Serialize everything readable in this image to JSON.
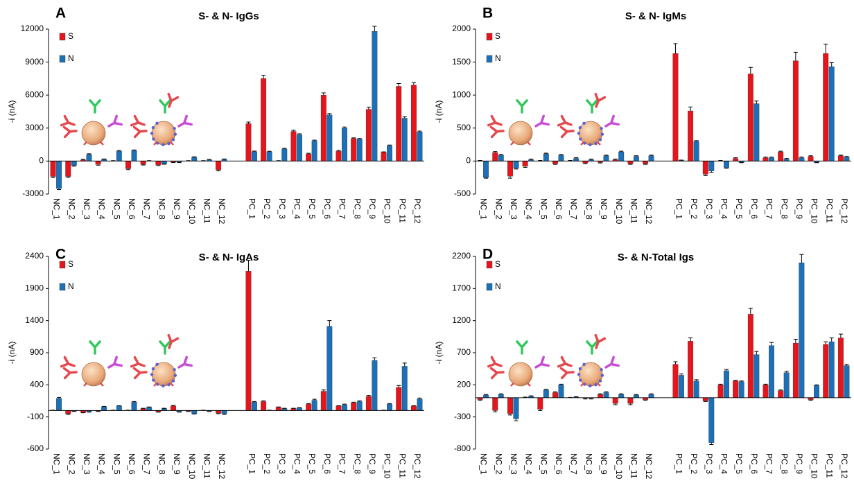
{
  "chart_data": [
    {
      "type": "bar",
      "label": "A",
      "title": "S- & N- IgGs",
      "ylabel": "-i (nA)",
      "categories": [
        "NC_1",
        "NC_2",
        "NC_3",
        "NC_4",
        "NC_5",
        "NC_6",
        "NC_7",
        "NC_8",
        "NC_9",
        "NC_10",
        "NC_11",
        "NC_12",
        null,
        "PC_1",
        "PC_2",
        "PC_3",
        "PC_4",
        "PC_5",
        "PC_6",
        "PC_7",
        "PC_8",
        "PC_9",
        "PC_10",
        "PC_11",
        "PC_12"
      ],
      "series": [
        {
          "name": "S",
          "color": "#e8141c",
          "values": [
            -1400,
            -1400,
            100,
            -300,
            0,
            -700,
            -300,
            -350,
            -100,
            0,
            0,
            -800,
            null,
            3400,
            7500,
            0,
            2700,
            650,
            6000,
            900,
            2050,
            4700,
            800,
            6800,
            6900
          ],
          "errors": [
            100,
            80,
            60,
            80,
            40,
            80,
            60,
            60,
            40,
            40,
            40,
            100,
            null,
            150,
            300,
            40,
            100,
            60,
            200,
            60,
            60,
            200,
            40,
            250,
            250
          ]
        },
        {
          "name": "N",
          "color": "#1b70b8",
          "values": [
            -2500,
            -400,
            600,
            150,
            900,
            950,
            0,
            -250,
            -100,
            350,
            100,
            150,
            null,
            850,
            850,
            1100,
            2400,
            1850,
            4200,
            3000,
            2000,
            11800,
            1400,
            3900,
            2650
          ],
          "errors": [
            100,
            60,
            60,
            40,
            60,
            60,
            40,
            40,
            40,
            40,
            40,
            40,
            null,
            60,
            40,
            60,
            80,
            60,
            120,
            100,
            60,
            450,
            60,
            120,
            80
          ]
        }
      ],
      "ylim": [
        -3000,
        12000
      ],
      "yticks": [
        -3000,
        0,
        3000,
        6000,
        9000,
        12000
      ]
    },
    {
      "type": "bar",
      "label": "B",
      "title": "S- & N- IgMs",
      "ylabel": "-i (nA)",
      "categories": [
        "NC_1",
        "NC_2",
        "NC_3",
        "NC_4",
        "NC_5",
        "NC_6",
        "NC_7",
        "NC_8",
        "NC_9",
        "NC_10",
        "NC_11",
        "NC_12",
        null,
        "PC_1",
        "PC_2",
        "PC_3",
        "PC_4",
        "PC_5",
        "PC_6",
        "PC_7",
        "PC_8",
        "PC_9",
        "PC_10",
        "PC_11",
        "PC_12"
      ],
      "series": [
        {
          "name": "S",
          "color": "#e8141c",
          "values": [
            0,
            130,
            -230,
            -80,
            0,
            -40,
            0,
            -30,
            -20,
            20,
            -40,
            -40,
            null,
            1630,
            760,
            -200,
            0,
            40,
            1320,
            50,
            140,
            1520,
            70,
            1630,
            80
          ],
          "errors": [
            10,
            15,
            30,
            15,
            10,
            10,
            10,
            10,
            10,
            10,
            10,
            10,
            null,
            150,
            60,
            20,
            10,
            10,
            100,
            10,
            10,
            130,
            10,
            140,
            10
          ]
        },
        {
          "name": "N",
          "color": "#1b70b8",
          "values": [
            -250,
            90,
            -110,
            20,
            110,
            90,
            40,
            20,
            80,
            140,
            70,
            80,
            null,
            10,
            300,
            -150,
            -100,
            -20,
            870,
            50,
            30,
            50,
            -20,
            1430,
            60
          ],
          "errors": [
            10,
            10,
            10,
            10,
            10,
            10,
            10,
            10,
            10,
            10,
            10,
            10,
            null,
            5,
            10,
            20,
            10,
            5,
            40,
            10,
            10,
            10,
            5,
            60,
            10
          ]
        }
      ],
      "ylim": [
        -500,
        2000
      ],
      "yticks": [
        -500,
        0,
        500,
        1000,
        1500,
        2000
      ]
    },
    {
      "type": "bar",
      "label": "C",
      "title": "S- & N- IgAs",
      "ylabel": "-i (nA)",
      "categories": [
        "NC_1",
        "NC_2",
        "NC_3",
        "NC_4",
        "NC_5",
        "NC_6",
        "NC_7",
        "NC_8",
        "NC_9",
        "NC_10",
        "NC_11",
        "NC_12",
        null,
        "PC_1",
        "PC_2",
        "PC_3",
        "PC_4",
        "PC_5",
        "PC_6",
        "PC_7",
        "PC_8",
        "PC_9",
        "PC_10",
        "PC_11",
        "PC_12"
      ],
      "series": [
        {
          "name": "S",
          "color": "#e8141c",
          "values": [
            0,
            -50,
            -30,
            -10,
            0,
            0,
            30,
            -20,
            70,
            -10,
            0,
            -40,
            null,
            2170,
            140,
            50,
            30,
            100,
            300,
            70,
            120,
            220,
            0,
            360,
            70
          ],
          "errors": [
            5,
            10,
            5,
            5,
            5,
            5,
            5,
            5,
            10,
            5,
            5,
            10,
            null,
            170,
            10,
            5,
            5,
            10,
            20,
            5,
            10,
            15,
            5,
            30,
            5
          ]
        },
        {
          "name": "N",
          "color": "#1b70b8",
          "values": [
            190,
            -10,
            -20,
            60,
            70,
            130,
            50,
            30,
            -20,
            -50,
            -10,
            -50,
            null,
            130,
            0,
            30,
            40,
            160,
            1310,
            90,
            140,
            780,
            100,
            690,
            180
          ],
          "errors": [
            15,
            5,
            5,
            5,
            5,
            10,
            5,
            5,
            5,
            5,
            5,
            10,
            null,
            10,
            5,
            5,
            5,
            15,
            90,
            10,
            10,
            40,
            10,
            50,
            15
          ]
        }
      ],
      "ylim": [
        -600,
        2400
      ],
      "yticks": [
        -600,
        -100,
        400,
        900,
        1400,
        1900,
        2400
      ]
    },
    {
      "type": "bar",
      "label": "D",
      "title": "S- & N-Total Igs",
      "ylabel": "-i (nA)",
      "categories": [
        "NC_1",
        "NC_2",
        "NC_3",
        "NC_4",
        "NC_5",
        "NC_6",
        "NC_7",
        "NC_8",
        "NC_9",
        "NC_10",
        "NC_11",
        "NC_12",
        null,
        "PC_1",
        "PC_2",
        "PC_3",
        "PC_4",
        "PC_5",
        "PC_6",
        "PC_7",
        "PC_8",
        "PC_9",
        "PC_10",
        "PC_11",
        "PC_12"
      ],
      "series": [
        {
          "name": "S",
          "color": "#e8141c",
          "values": [
            -30,
            -200,
            -250,
            0,
            -180,
            80,
            0,
            -10,
            50,
            -90,
            -90,
            -30,
            null,
            520,
            880,
            -50,
            200,
            260,
            1300,
            200,
            110,
            850,
            -30,
            830,
            930
          ],
          "errors": [
            10,
            20,
            20,
            10,
            20,
            10,
            5,
            10,
            10,
            20,
            20,
            10,
            null,
            40,
            50,
            10,
            10,
            10,
            90,
            10,
            10,
            60,
            10,
            40,
            60
          ]
        },
        {
          "name": "N",
          "color": "#1b70b8",
          "values": [
            40,
            50,
            -330,
            20,
            120,
            200,
            10,
            -10,
            80,
            50,
            40,
            50,
            null,
            350,
            260,
            -700,
            420,
            250,
            670,
            810,
            390,
            2100,
            190,
            870,
            500
          ],
          "errors": [
            10,
            10,
            30,
            10,
            10,
            10,
            5,
            10,
            10,
            10,
            10,
            10,
            null,
            20,
            20,
            30,
            20,
            10,
            50,
            50,
            20,
            130,
            10,
            60,
            20
          ]
        }
      ],
      "ylim": [
        -800,
        2200
      ],
      "yticks": [
        -800,
        -300,
        200,
        700,
        1200,
        1700,
        2200
      ]
    }
  ]
}
